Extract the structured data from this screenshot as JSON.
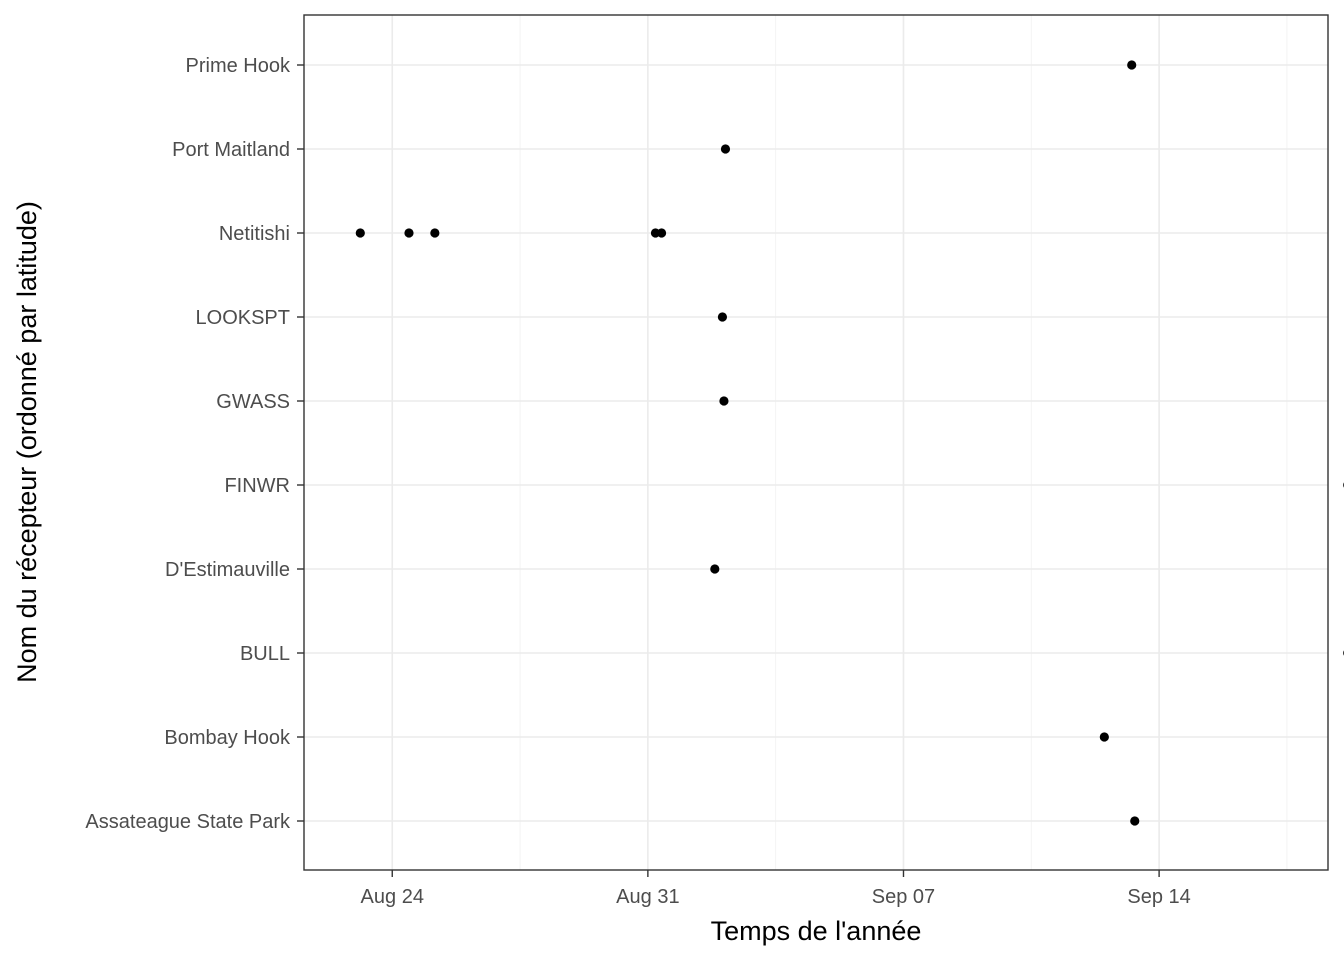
{
  "chart_data": {
    "type": "scatter",
    "title": "",
    "xlabel": "Temps de l'année",
    "ylabel": "Nom du récepteur (ordonné par latitude)",
    "x_type": "date",
    "x_range": [
      "2023-08-21T14:00",
      "2023-09-18T15:00"
    ],
    "x_ticks": [
      {
        "date": "2023-08-24",
        "label": "Aug 24"
      },
      {
        "date": "2023-08-31",
        "label": "Aug 31"
      },
      {
        "date": "2023-09-07",
        "label": "Sep 07"
      },
      {
        "date": "2023-09-14",
        "label": "Sep 14"
      }
    ],
    "categories": [
      "Assateague State Park",
      "Bombay Hook",
      "BULL",
      "D'Estimauville",
      "FINWR",
      "GWASS",
      "LOOKSPT",
      "Netitishi",
      "Port Maitland",
      "Prime Hook"
    ],
    "points": [
      {
        "y": "Prime Hook",
        "x": "2023-09-13T06:00"
      },
      {
        "y": "Port Maitland",
        "x": "2023-09-02T03:00"
      },
      {
        "y": "Netitishi",
        "x": "2023-08-23T03:00"
      },
      {
        "y": "Netitishi",
        "x": "2023-08-24T11:00"
      },
      {
        "y": "Netitishi",
        "x": "2023-08-25T04:00"
      },
      {
        "y": "Netitishi",
        "x": "2023-08-31T05:00"
      },
      {
        "y": "Netitishi",
        "x": "2023-08-31T09:00"
      },
      {
        "y": "LOOKSPT",
        "x": "2023-09-02T01:00"
      },
      {
        "y": "GWASS",
        "x": "2023-09-02T02:00"
      },
      {
        "y": "FINWR",
        "x": "2023-09-19T04:00"
      },
      {
        "y": "D'Estimauville",
        "x": "2023-09-01T20:00"
      },
      {
        "y": "BULL",
        "x": "2023-09-19T04:00"
      },
      {
        "y": "Bombay Hook",
        "x": "2023-09-12T12:00"
      },
      {
        "y": "Assateague State Park",
        "x": "2023-09-13T08:00"
      }
    ],
    "grid": true,
    "legend": "none",
    "colors": {
      "point": "#000000",
      "grid": "#ebebeb",
      "border": "#333333",
      "tick_text": "#4d4d4d"
    }
  }
}
